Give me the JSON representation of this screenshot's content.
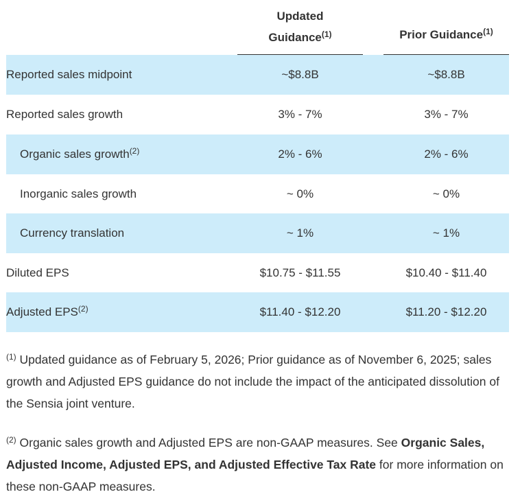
{
  "colors": {
    "row_shade": "#cdecfa",
    "text": "#333333",
    "rule": "#333333"
  },
  "header": {
    "updated_line1": "Updated",
    "updated_line2": "Guidance",
    "updated_sup": "(1)",
    "prior": "Prior Guidance",
    "prior_sup": "(1)"
  },
  "rows": [
    {
      "label": "Reported sales midpoint",
      "sup": "",
      "updated": "~$8.8B",
      "prior": "~$8.8B"
    },
    {
      "label": "Reported sales growth",
      "sup": "",
      "updated": "3% - 7%",
      "prior": "3% - 7%"
    },
    {
      "label": "Organic sales growth",
      "sup": "(2)",
      "updated": "2% - 6%",
      "prior": "2% - 6%"
    },
    {
      "label": "Inorganic sales growth",
      "sup": "",
      "updated": "~ 0%",
      "prior": "~ 0%"
    },
    {
      "label": "Currency translation",
      "sup": "",
      "updated": "~ 1%",
      "prior": "~ 1%"
    },
    {
      "label": "Diluted EPS",
      "sup": "",
      "updated": "$10.75 - $11.55",
      "prior": "$10.40 - $11.40"
    },
    {
      "label": "Adjusted EPS",
      "sup": "(2)",
      "updated": "$11.40 - $12.20",
      "prior": "$11.20 - $12.20"
    }
  ],
  "footnotes": {
    "one_marker": "(1)",
    "one_text": "Updated guidance as of February 5, 2026; Prior guidance as of November 6, 2025; sales growth and Adjusted EPS guidance do not include the impact of the anticipated dissolution of the Sensia joint venture.",
    "two_marker": "(2)",
    "two_text_before": "Organic sales growth and Adjusted EPS are non-GAAP measures. See ",
    "two_bold": "Organic Sales, Adjusted Income, Adjusted EPS, and Adjusted Effective Tax Rate",
    "two_text_after": " for more information on these non-GAAP measures."
  }
}
